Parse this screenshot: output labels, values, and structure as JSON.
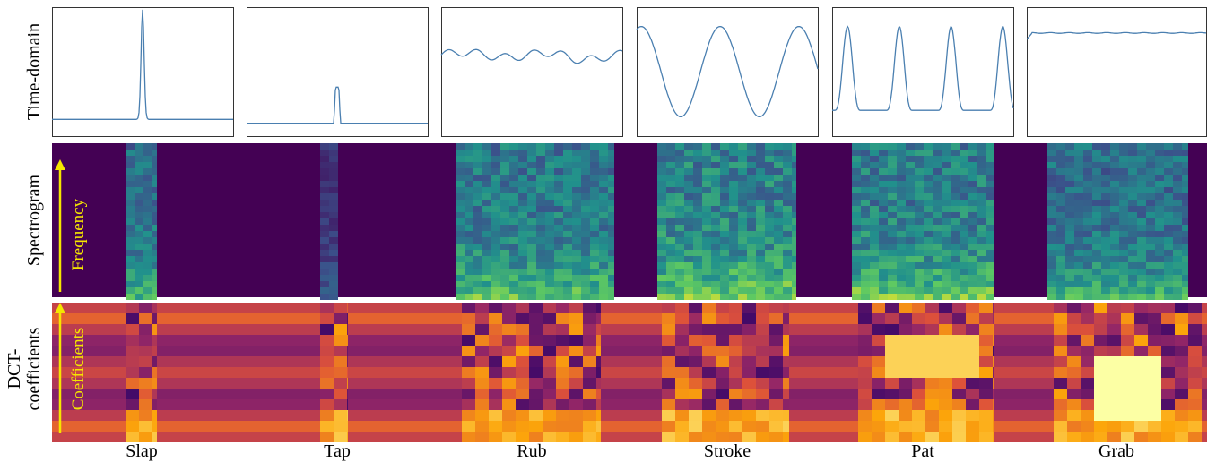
{
  "rows": {
    "time_domain": "Time-domain",
    "spectrogram": "Spectrogram",
    "frequency": "Frequency",
    "dct_line1": "DCT-",
    "dct_line2": "coefficients",
    "coefficients": "Coefficients"
  },
  "columns": [
    "Slap",
    "Tap",
    "Rub",
    "Stroke",
    "Pat",
    "Grab"
  ]
}
